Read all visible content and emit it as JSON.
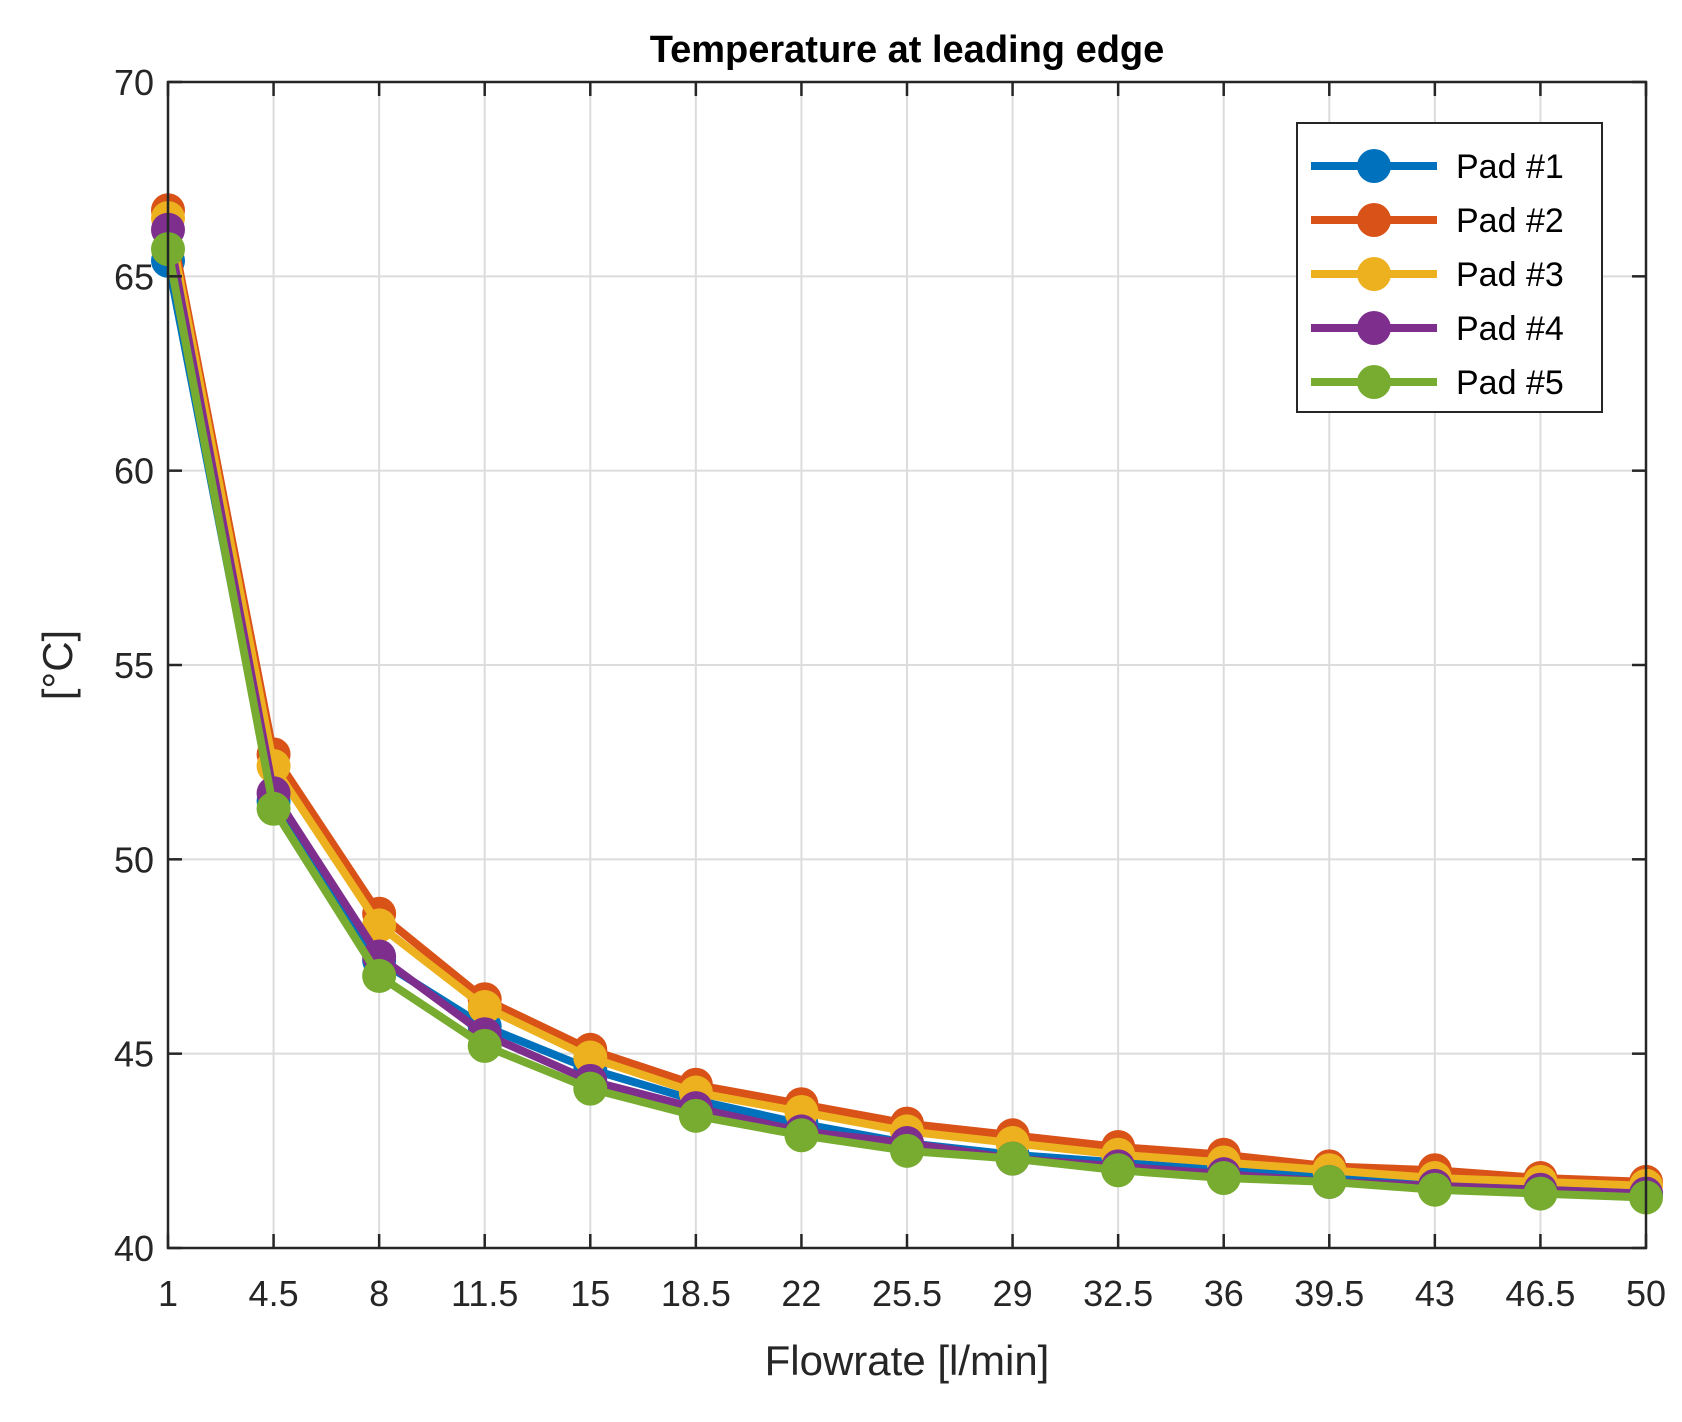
{
  "chart_data": {
    "type": "line",
    "title": "Temperature at leading edge",
    "xlabel": "Flowrate [l/min]",
    "ylabel": "[°C]",
    "x": [
      1,
      4.5,
      8,
      11.5,
      15,
      18.5,
      22,
      25.5,
      29,
      32.5,
      36,
      39.5,
      43,
      46.5,
      50
    ],
    "x_tick_labels": [
      "1",
      "4.5",
      "8",
      "11.5",
      "15",
      "18.5",
      "22",
      "25.5",
      "29",
      "32.5",
      "36",
      "39.5",
      "43",
      "46.5",
      "50"
    ],
    "y_ticks": [
      40,
      45,
      50,
      55,
      60,
      65,
      70
    ],
    "y_tick_labels": [
      "40",
      "45",
      "50",
      "55",
      "60",
      "65",
      "70"
    ],
    "xlim": [
      1,
      50
    ],
    "ylim": [
      40,
      70
    ],
    "grid": true,
    "legend_position": "top-right",
    "series": [
      {
        "name": "Pad #1",
        "color": "#0072BD",
        "values": [
          65.4,
          51.5,
          47.4,
          45.7,
          44.6,
          43.8,
          43.2,
          42.7,
          42.4,
          42.2,
          42.0,
          41.8,
          41.7,
          41.5,
          41.4
        ]
      },
      {
        "name": "Pad #2",
        "color": "#D95319",
        "values": [
          66.7,
          52.7,
          48.6,
          46.4,
          45.1,
          44.2,
          43.7,
          43.2,
          42.9,
          42.6,
          42.4,
          42.1,
          42.0,
          41.8,
          41.7
        ]
      },
      {
        "name": "Pad #3",
        "color": "#EDB120",
        "values": [
          66.5,
          52.4,
          48.3,
          46.2,
          44.9,
          44.0,
          43.5,
          43.0,
          42.7,
          42.4,
          42.2,
          42.0,
          41.8,
          41.7,
          41.6
        ]
      },
      {
        "name": "Pad #4",
        "color": "#7E2F8E",
        "values": [
          66.2,
          51.7,
          47.5,
          45.5,
          44.3,
          43.6,
          43.0,
          42.7,
          42.3,
          42.1,
          41.9,
          41.7,
          41.6,
          41.5,
          41.4
        ]
      },
      {
        "name": "Pad #5",
        "color": "#77AC30",
        "values": [
          65.7,
          51.3,
          47.0,
          45.2,
          44.1,
          43.4,
          42.9,
          42.5,
          42.3,
          42.0,
          41.8,
          41.7,
          41.5,
          41.4,
          41.3
        ]
      }
    ]
  }
}
